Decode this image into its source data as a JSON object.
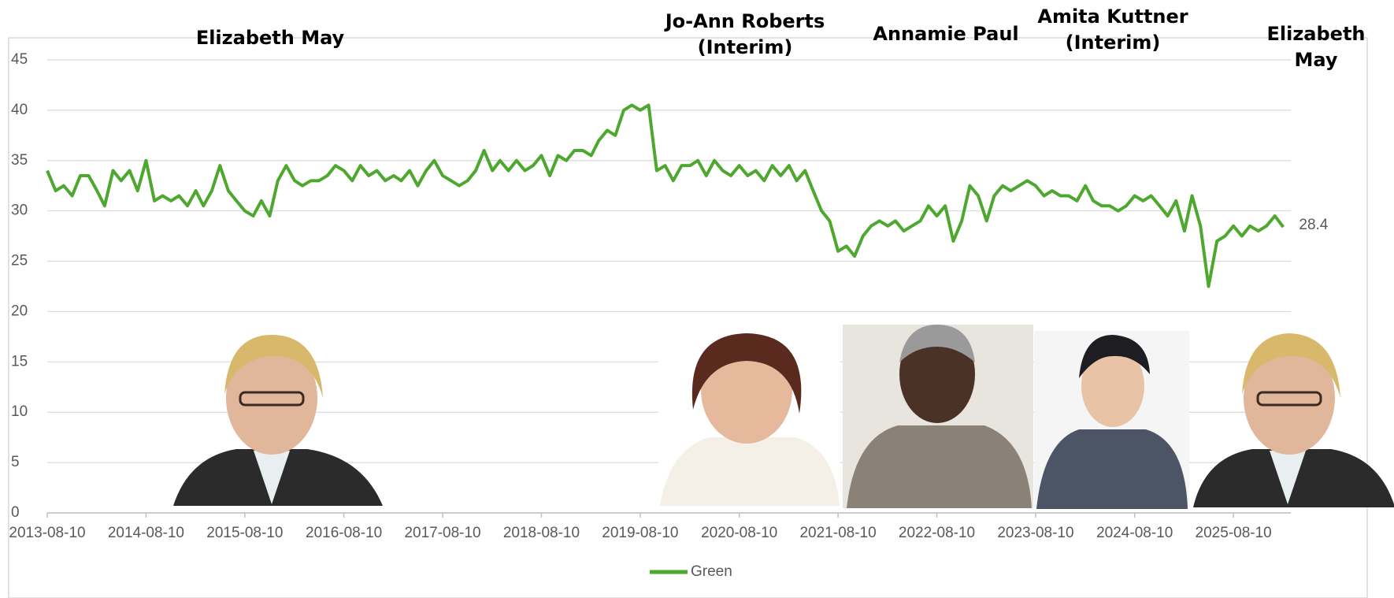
{
  "chart_data": {
    "type": "line",
    "annotations": [
      "Elizabeth May",
      "Jo-Ann Roberts\n(Interim)",
      "Annamie Paul",
      "Amita Kuttner\n(Interim)",
      "Elizabeth May"
    ],
    "x": [
      "2013-08-10",
      "2013-09-10",
      "2013-10-10",
      "2013-11-10",
      "2013-12-10",
      "2014-01-10",
      "2014-02-10",
      "2014-03-10",
      "2014-04-10",
      "2014-05-10",
      "2014-06-10",
      "2014-07-10",
      "2014-08-10",
      "2014-09-10",
      "2014-10-10",
      "2014-11-10",
      "2014-12-10",
      "2015-01-10",
      "2015-02-10",
      "2015-03-10",
      "2015-04-10",
      "2015-05-10",
      "2015-06-10",
      "2015-07-10",
      "2015-08-10",
      "2015-09-10",
      "2015-10-10",
      "2015-11-10",
      "2015-12-10",
      "2016-01-10",
      "2016-02-10",
      "2016-03-10",
      "2016-04-10",
      "2016-05-10",
      "2016-06-10",
      "2016-07-10",
      "2016-08-10",
      "2016-09-10",
      "2016-10-10",
      "2016-11-10",
      "2016-12-10",
      "2017-01-10",
      "2017-02-10",
      "2017-03-10",
      "2017-04-10",
      "2017-05-10",
      "2017-06-10",
      "2017-07-10",
      "2017-08-10",
      "2017-09-10",
      "2017-10-10",
      "2017-11-10",
      "2017-12-10",
      "2018-01-10",
      "2018-02-10",
      "2018-03-10",
      "2018-04-10",
      "2018-05-10",
      "2018-06-10",
      "2018-07-10",
      "2018-08-10",
      "2018-09-10",
      "2018-10-10",
      "2018-11-10",
      "2018-12-10",
      "2019-01-10",
      "2019-02-10",
      "2019-03-10",
      "2019-04-10",
      "2019-05-10",
      "2019-06-10",
      "2019-07-10",
      "2019-08-10",
      "2019-09-10",
      "2019-10-10",
      "2019-11-10",
      "2019-12-10",
      "2020-01-10",
      "2020-02-10",
      "2020-03-10",
      "2020-04-10",
      "2020-05-10",
      "2020-06-10",
      "2020-07-10",
      "2020-08-10",
      "2020-09-10",
      "2020-10-10",
      "2020-11-10",
      "2020-12-10",
      "2021-01-10",
      "2021-02-10",
      "2021-03-10",
      "2021-04-10",
      "2021-05-10",
      "2021-06-10",
      "2021-07-10",
      "2021-08-10",
      "2021-09-10",
      "2021-10-10",
      "2021-11-10",
      "2021-12-10",
      "2022-01-10",
      "2022-02-10",
      "2022-03-10",
      "2022-04-10",
      "2022-05-10",
      "2022-06-10",
      "2022-07-10",
      "2022-08-10",
      "2022-09-10",
      "2022-10-10",
      "2022-11-10",
      "2022-12-10",
      "2023-01-10",
      "2023-02-10",
      "2023-03-10",
      "2023-04-10",
      "2023-05-10",
      "2023-06-10",
      "2023-07-10",
      "2023-08-10",
      "2023-09-10",
      "2023-10-10",
      "2023-11-10",
      "2023-12-10",
      "2024-01-10",
      "2024-02-10",
      "2024-03-10",
      "2024-04-10",
      "2024-05-10",
      "2024-06-10",
      "2024-07-10",
      "2024-08-10",
      "2024-09-10",
      "2024-10-10",
      "2024-11-10",
      "2024-12-10",
      "2025-01-10",
      "2025-02-10",
      "2025-03-10",
      "2025-04-10",
      "2025-05-10",
      "2025-06-10",
      "2025-07-10",
      "2025-08-10",
      "2025-09-10",
      "2025-10-10",
      "2025-11-10",
      "2025-12-10",
      "2026-01-10",
      "2026-02-10"
    ],
    "series": [
      {
        "name": "Green",
        "color": "#4ea72e",
        "values": [
          34,
          32,
          32.5,
          31.5,
          33.5,
          33.5,
          32,
          30.5,
          34,
          33,
          34,
          32,
          35,
          31,
          31.5,
          31,
          31.5,
          30.5,
          32,
          30.5,
          32,
          34.5,
          32,
          31,
          30,
          29.5,
          31,
          29.5,
          33,
          34.5,
          33,
          32.5,
          33,
          33,
          33.5,
          34.5,
          34,
          33,
          34.5,
          33.5,
          34,
          33,
          33.5,
          33,
          34,
          32.5,
          34,
          35,
          33.5,
          33,
          32.5,
          33,
          34,
          36,
          34,
          35,
          34,
          35,
          34,
          34.5,
          35.5,
          33.5,
          35.5,
          35,
          36,
          36,
          35.5,
          37,
          38,
          37.5,
          40,
          40.5,
          40,
          40.5,
          34,
          34.5,
          33,
          34.5,
          34.5,
          35,
          33.5,
          35,
          34,
          33.5,
          34.5,
          33.5,
          34,
          33,
          34.5,
          33.5,
          34.5,
          33,
          34,
          32,
          30,
          29,
          26,
          26.5,
          25.5,
          27.5,
          28.5,
          29,
          28.5,
          29,
          28,
          28.5,
          29,
          30.5,
          29.5,
          30.5,
          27,
          29,
          32.5,
          31.5,
          29,
          31.5,
          32.5,
          32,
          32.5,
          33,
          32.5,
          31.5,
          32,
          31.5,
          31.5,
          31,
          32.5,
          31,
          30.5,
          30.5,
          30,
          30.5,
          31.5,
          31,
          31.5,
          30.5,
          29.5,
          31,
          28,
          31.5,
          28.5,
          22.5,
          27,
          27.5,
          28.5,
          27.5,
          28.5,
          28,
          28.5,
          29.5,
          28.4
        ]
      }
    ],
    "xlim": [
      "2013-08-10",
      "2026-03-10"
    ],
    "xticks": [
      "2013-08-10",
      "2014-08-10",
      "2015-08-10",
      "2016-08-10",
      "2017-08-10",
      "2018-08-10",
      "2019-08-10",
      "2020-08-10",
      "2021-08-10",
      "2022-08-10",
      "2023-08-10",
      "2024-08-10",
      "2025-08-10"
    ],
    "ylim": [
      0,
      45
    ],
    "yticks": [
      0,
      5,
      10,
      15,
      20,
      25,
      30,
      35,
      40,
      45
    ],
    "grid": true
  }
}
